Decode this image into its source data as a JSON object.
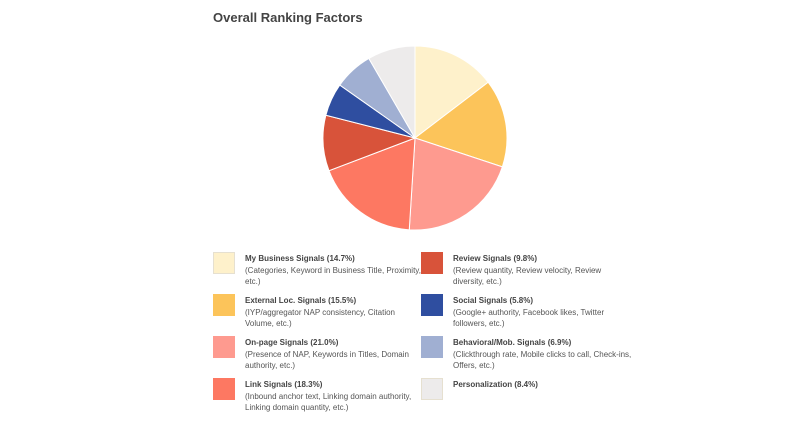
{
  "colors": {
    "my_business": "#FEF1CB",
    "external_loc": "#FCC45A",
    "on_page": "#FE9A8F",
    "link": "#FD7862",
    "review": "#D8533A",
    "social": "#2F4EA0",
    "behavioral": "#A0AFD2",
    "personalization": "#EDEBEB"
  },
  "chart_data": {
    "type": "pie",
    "title": "Overall Ranking Factors",
    "slices": [
      {
        "name": "My Business Signals",
        "value": 14.7,
        "label": "My Business Signals (14.7%)",
        "description": "(Categories, Keyword in Business Title, Proximity, etc.)",
        "color": "#FEF1CB"
      },
      {
        "name": "External Loc. Signals",
        "value": 15.5,
        "label": "External Loc. Signals (15.5%)",
        "description": "(IYP/aggregator NAP consistency, Citation Volume, etc.)",
        "color": "#FCC45A"
      },
      {
        "name": "On-page Signals",
        "value": 21.0,
        "label": "On-page Signals (21.0%)",
        "description": "(Presence of NAP, Keywords in Titles, Domain authority, etc.)",
        "color": "#FE9A8F"
      },
      {
        "name": "Link Signals",
        "value": 18.3,
        "label": "Link Signals (18.3%)",
        "description": "(Inbound anchor text, Linking domain authority, Linking domain quantity, etc.)",
        "color": "#FD7862"
      },
      {
        "name": "Review Signals",
        "value": 9.8,
        "label": "Review Signals (9.8%)",
        "description": "(Review quantity, Review velocity, Review diversity, etc.)",
        "color": "#D8533A"
      },
      {
        "name": "Social Signals",
        "value": 5.8,
        "label": "Social Signals (5.8%)",
        "description": "(Google+ authority, Facebook likes, Twitter followers, etc.)",
        "color": "#2F4EA0"
      },
      {
        "name": "Behavioral/Mob. Signals",
        "value": 6.9,
        "label": "Behavioral/Mob. Signals (6.9%)",
        "description": "(Clickthrough rate, Mobile clicks to call, Check-ins, Offers, etc.)",
        "color": "#A0AFD2"
      },
      {
        "name": "Personalization",
        "value": 8.4,
        "label": "Personalization (8.4%)",
        "description": "",
        "color": "#EDEBEB"
      }
    ],
    "start": "12 o'clock",
    "direction": "clockwise",
    "legend": "bottom, two columns"
  }
}
